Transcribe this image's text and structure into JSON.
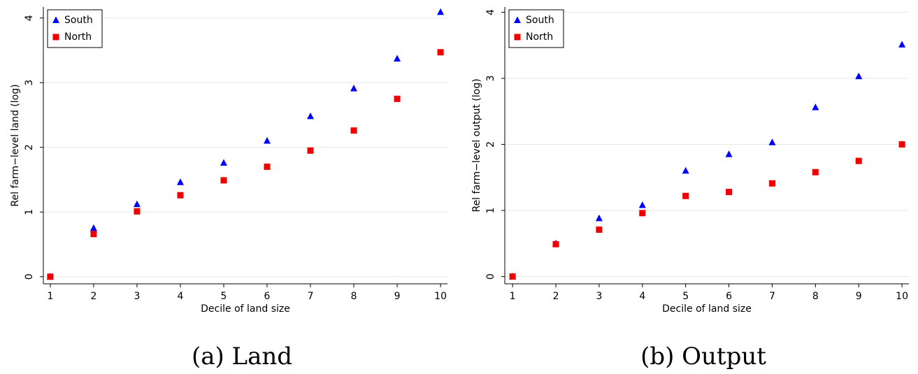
{
  "chart_data": [
    {
      "type": "scatter",
      "caption": "(a) Land",
      "xlabel": "Decile of land size",
      "ylabel": "Rel farm−level land (log)",
      "x": [
        1,
        2,
        3,
        4,
        5,
        6,
        7,
        8,
        9,
        10
      ],
      "series": [
        {
          "name": "South",
          "color": "#0000ff",
          "marker": "triangle",
          "values": [
            0,
            0.75,
            1.12,
            1.46,
            1.76,
            2.1,
            2.48,
            2.91,
            3.37,
            4.09
          ]
        },
        {
          "name": "North",
          "color": "#ee0000",
          "marker": "square",
          "values": [
            0,
            0.66,
            1.01,
            1.26,
            1.49,
            1.7,
            1.95,
            2.26,
            2.75,
            3.47
          ]
        }
      ],
      "xlim": [
        0.84,
        10.16
      ],
      "ylim": [
        -0.11,
        4.17
      ],
      "xticks": [
        1,
        2,
        3,
        4,
        5,
        6,
        7,
        8,
        9,
        10
      ],
      "yticks": [
        0,
        1,
        2,
        3,
        4
      ],
      "grid": true,
      "legend": "top-left"
    },
    {
      "type": "scatter",
      "caption": "(b) Output",
      "xlabel": "Decile of land size",
      "ylabel": "Rel farm−level output (log)",
      "x": [
        1,
        2,
        3,
        4,
        5,
        6,
        7,
        8,
        9,
        10
      ],
      "series": [
        {
          "name": "South",
          "color": "#0000ff",
          "marker": "triangle",
          "values": [
            0,
            0.5,
            0.88,
            1.08,
            1.6,
            1.85,
            2.03,
            2.56,
            3.03,
            3.51
          ]
        },
        {
          "name": "North",
          "color": "#ee0000",
          "marker": "square",
          "values": [
            0,
            0.49,
            0.71,
            0.96,
            1.22,
            1.28,
            1.41,
            1.58,
            1.75,
            2.0
          ]
        }
      ],
      "xlim": [
        0.82,
        10.16
      ],
      "ylim": [
        -0.11,
        4.08
      ],
      "xticks": [
        1,
        2,
        3,
        4,
        5,
        6,
        7,
        8,
        9,
        10
      ],
      "yticks": [
        0,
        1,
        2,
        3,
        4
      ],
      "grid": true,
      "legend": "top-left"
    }
  ]
}
